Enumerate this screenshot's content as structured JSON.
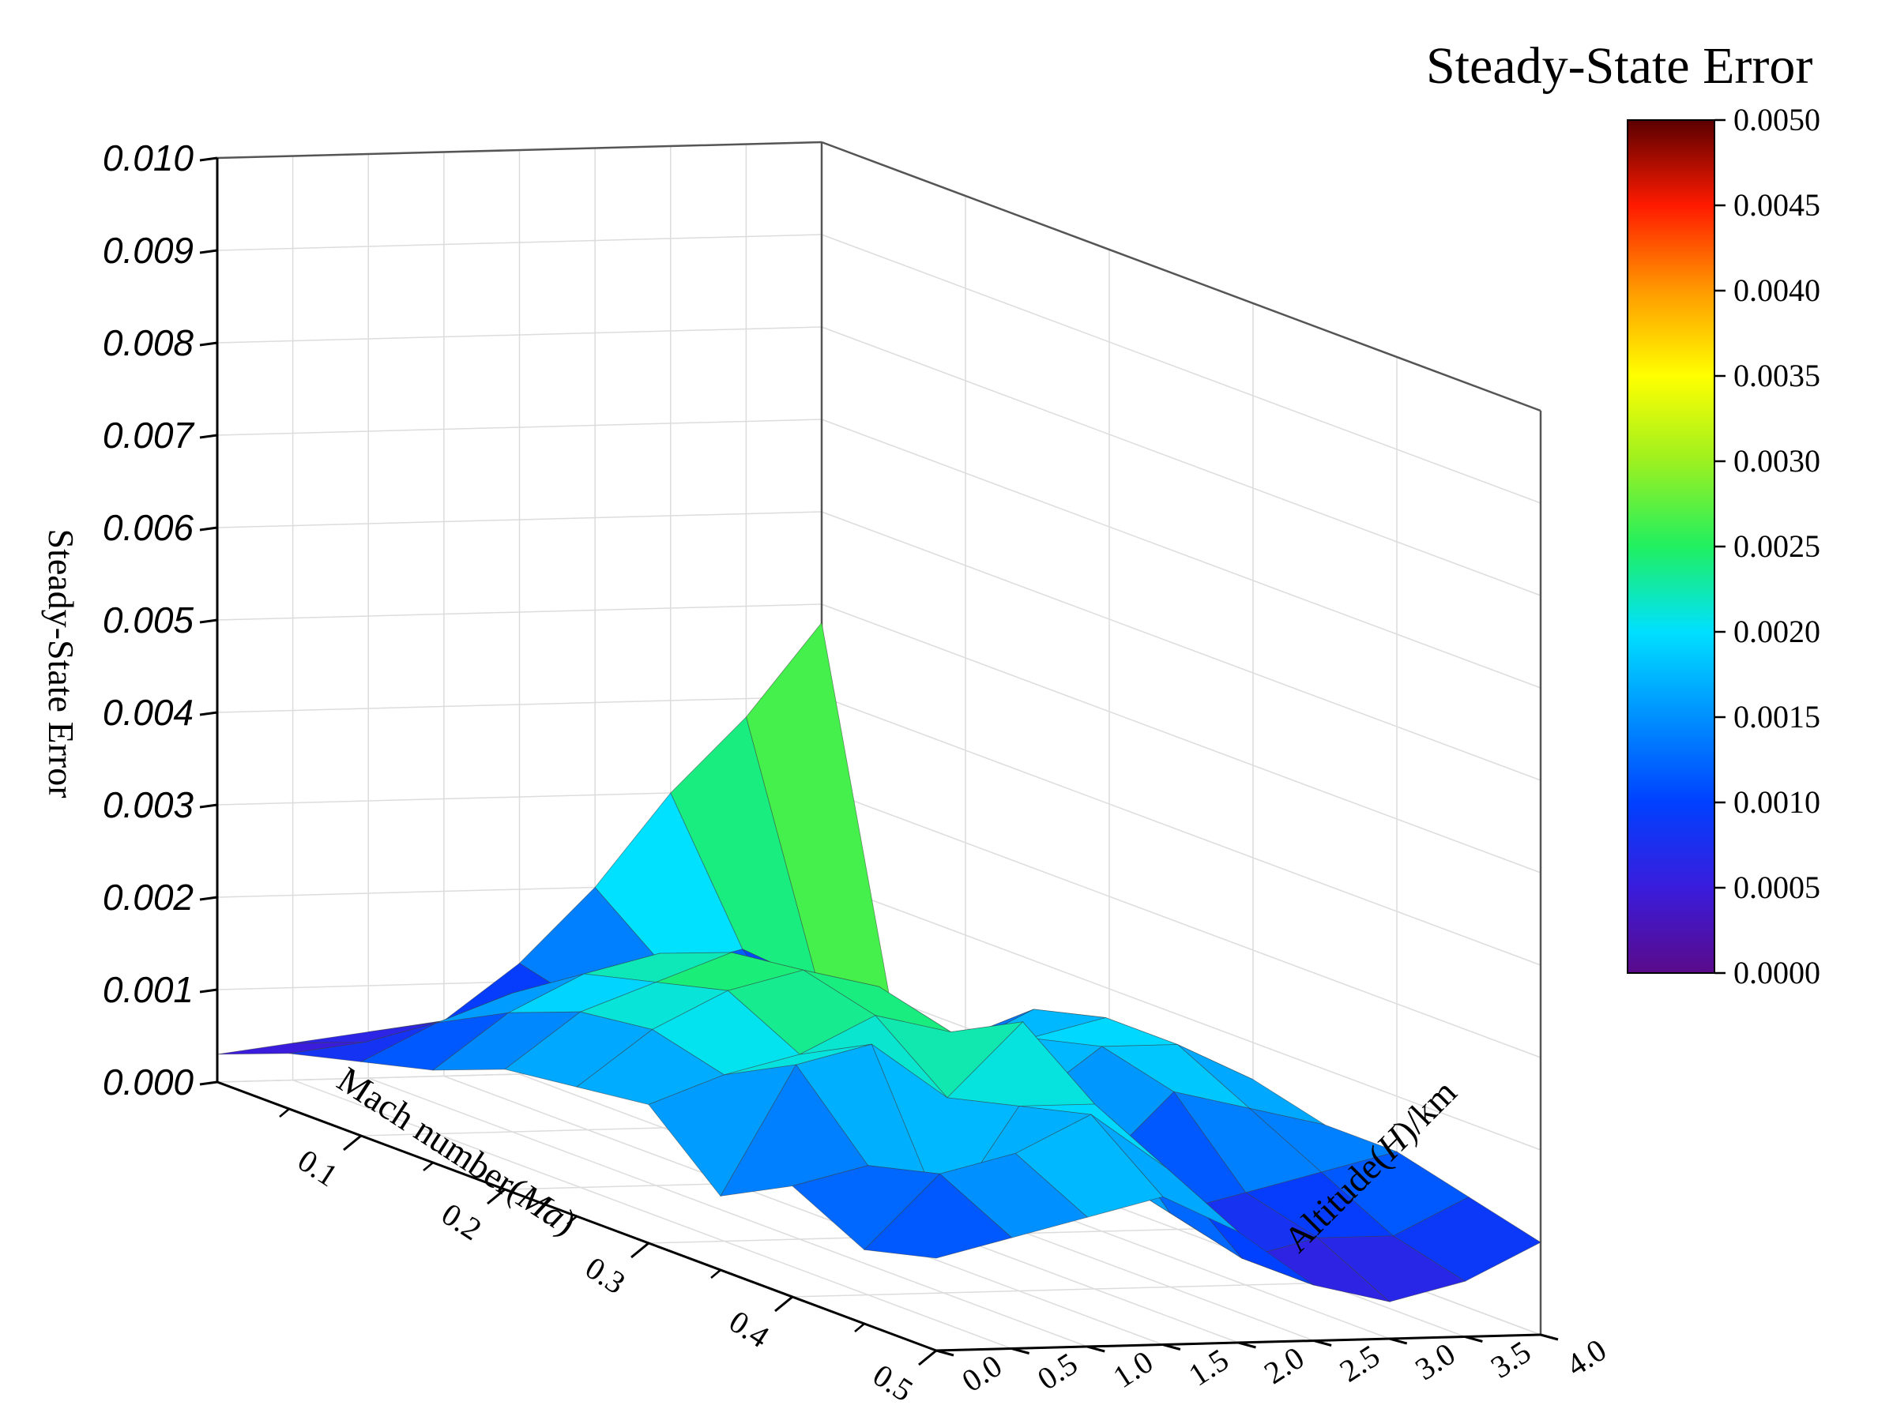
{
  "chart_data": {
    "type": "surface",
    "title": "",
    "x_axis": {
      "label_prefix": "Mach number(",
      "label_var": "Ma",
      "label_suffix": ")",
      "range": [
        0.0,
        0.5
      ],
      "ticks": [
        "0.1",
        "0.2",
        "0.3",
        "0.4",
        "0.5"
      ]
    },
    "y_axis": {
      "label_prefix": "Altitude(",
      "label_var": "H",
      "label_suffix": ")/km",
      "range": [
        0.0,
        4.0
      ],
      "ticks": [
        "0.0",
        "0.5",
        "1.0",
        "1.5",
        "2.0",
        "2.5",
        "3.0",
        "3.5",
        "4.0"
      ]
    },
    "z_axis": {
      "label": "Steady-State Error",
      "range": [
        0.0,
        0.01
      ],
      "ticks": [
        "0.000",
        "0.001",
        "0.002",
        "0.003",
        "0.004",
        "0.005",
        "0.006",
        "0.007",
        "0.008",
        "0.009",
        "0.010"
      ]
    },
    "colorbar": {
      "title": "Steady-State Error",
      "range": [
        0.0,
        0.005
      ],
      "ticks": [
        "0.0000",
        "0.0005",
        "0.0010",
        "0.0015",
        "0.0020",
        "0.0025",
        "0.0030",
        "0.0035",
        "0.0040",
        "0.0045",
        "0.0050"
      ],
      "colors": [
        "#5a0a8a",
        "#3a1cdc",
        "#0040ff",
        "#0090ff",
        "#00e0ff",
        "#20f060",
        "#9cf020",
        "#ffff00",
        "#ff9a00",
        "#ff1a00",
        "#5a0000"
      ]
    },
    "grid": true,
    "mach_values": [
      0.0,
      0.05,
      0.1,
      0.15,
      0.2,
      0.25,
      0.3,
      0.35,
      0.4,
      0.45,
      0.5
    ],
    "altitude_values": [
      0.0,
      0.5,
      1.0,
      1.5,
      2.0,
      2.5,
      3.0,
      3.5,
      4.0
    ],
    "z_grid": [
      [
        0.0003,
        0.0006,
        0.0008,
        0.001,
        0.0013,
        0.0014,
        0.0015,
        0.0008,
        0.0012,
        0.0008,
        0.001
      ],
      [
        0.0004,
        0.0007,
        0.0012,
        0.0016,
        0.0019,
        0.002,
        0.0018,
        0.0022,
        0.0014,
        0.0016,
        0.0012
      ],
      [
        0.0005,
        0.0009,
        0.0015,
        0.002,
        0.0022,
        0.0024,
        0.002,
        0.0024,
        0.0008,
        0.0018,
        0.0014
      ],
      [
        0.0006,
        0.001,
        0.0016,
        0.0022,
        0.0025,
        0.0026,
        0.0024,
        0.0018,
        0.002,
        0.0022,
        0.0016
      ],
      [
        0.0012,
        0.001,
        0.0014,
        0.0018,
        0.0022,
        0.0024,
        0.0022,
        0.0026,
        0.002,
        0.0016,
        0.0012
      ],
      [
        0.002,
        0.0014,
        0.001,
        0.0012,
        0.0016,
        0.0018,
        0.0014,
        0.001,
        0.0008,
        0.0006,
        0.0006
      ],
      [
        0.003,
        0.0016,
        0.0008,
        0.001,
        0.0014,
        0.0018,
        0.002,
        0.0018,
        0.001,
        0.0008,
        0.0004
      ],
      [
        0.0038,
        0.0012,
        0.0006,
        0.0012,
        0.0018,
        0.002,
        0.002,
        0.0016,
        0.0012,
        0.0008,
        0.0006
      ],
      [
        0.0048,
        0.0008,
        0.0004,
        0.001,
        0.0014,
        0.0016,
        0.0016,
        0.0014,
        0.0014,
        0.0012,
        0.001
      ]
    ]
  }
}
